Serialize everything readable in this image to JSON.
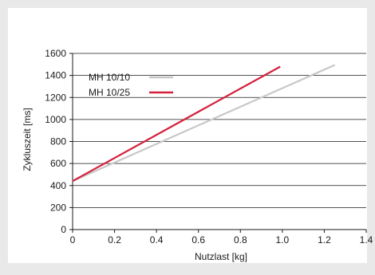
{
  "chart_data": {
    "type": "line",
    "title": "",
    "xlabel": "Nutzlast [kg]",
    "ylabel": "Zykluszeit [ms]",
    "xlim": [
      0,
      1.4
    ],
    "ylim": [
      0,
      1600
    ],
    "x_ticks": [
      0,
      0.2,
      0.4,
      0.6,
      0.8,
      1.0,
      1.2,
      1.4
    ],
    "x_tick_labels": [
      "0",
      "0.2",
      "0.4",
      "0.6",
      "0.8",
      "1.0",
      "1.2",
      "1.4"
    ],
    "y_ticks": [
      0,
      200,
      400,
      600,
      800,
      1000,
      1200,
      1400,
      1600
    ],
    "y_tick_labels": [
      "0",
      "200",
      "400",
      "600",
      "800",
      "1000",
      "1200",
      "1400",
      "1600"
    ],
    "grid": "horizontal",
    "legend_position": "top-left",
    "series": [
      {
        "name": "MH 10/10",
        "color": "#c8c8c8",
        "x": [
          0,
          1.25
        ],
        "y": [
          440,
          1495
        ]
      },
      {
        "name": "MH 10/25",
        "color": "#d4213d",
        "x": [
          0,
          0.99
        ],
        "y": [
          440,
          1480
        ]
      }
    ]
  }
}
